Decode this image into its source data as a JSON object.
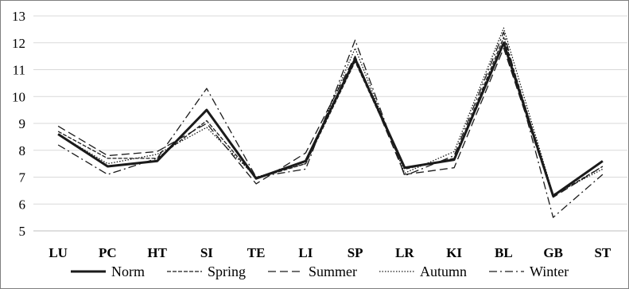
{
  "chart_data": {
    "type": "line",
    "title": "",
    "xlabel": "",
    "ylabel": "",
    "categories": [
      "LU",
      "PC",
      "HT",
      "SI",
      "TE",
      "LI",
      "SP",
      "LR",
      "KI",
      "BL",
      "GB",
      "ST"
    ],
    "ylim": [
      5,
      13
    ],
    "yticks": [
      "5",
      "6",
      "7",
      "8",
      "9",
      "10",
      "11",
      "12",
      "13"
    ],
    "grid": "horizontal",
    "legend_position": "bottom",
    "series": [
      {
        "name": "Norm",
        "style": "solid",
        "values": [
          8.6,
          7.4,
          7.6,
          9.5,
          6.95,
          7.6,
          11.4,
          7.35,
          7.65,
          12.0,
          6.3,
          7.6
        ]
      },
      {
        "name": "Spring",
        "style": "dashed",
        "values": [
          8.7,
          7.7,
          7.7,
          9.1,
          6.95,
          7.5,
          11.3,
          7.3,
          7.7,
          12.2,
          6.3,
          7.4
        ]
      },
      {
        "name": "Summer",
        "style": "longdash",
        "values": [
          8.9,
          7.8,
          7.95,
          9.0,
          6.75,
          7.9,
          11.5,
          7.1,
          7.35,
          11.8,
          6.25,
          7.4
        ]
      },
      {
        "name": "Autumn",
        "style": "dotted",
        "values": [
          8.6,
          7.5,
          7.85,
          8.85,
          7.0,
          7.5,
          11.8,
          7.15,
          7.95,
          12.55,
          6.35,
          7.3
        ]
      },
      {
        "name": "Winter",
        "style": "dashdot",
        "values": [
          8.2,
          7.1,
          7.7,
          10.3,
          7.0,
          7.3,
          12.1,
          7.05,
          7.8,
          12.4,
          5.5,
          7.1
        ]
      }
    ],
    "colors": {
      "line": "#1a1a1a",
      "grid": "#d9d9d9",
      "axis": "#000000"
    }
  }
}
